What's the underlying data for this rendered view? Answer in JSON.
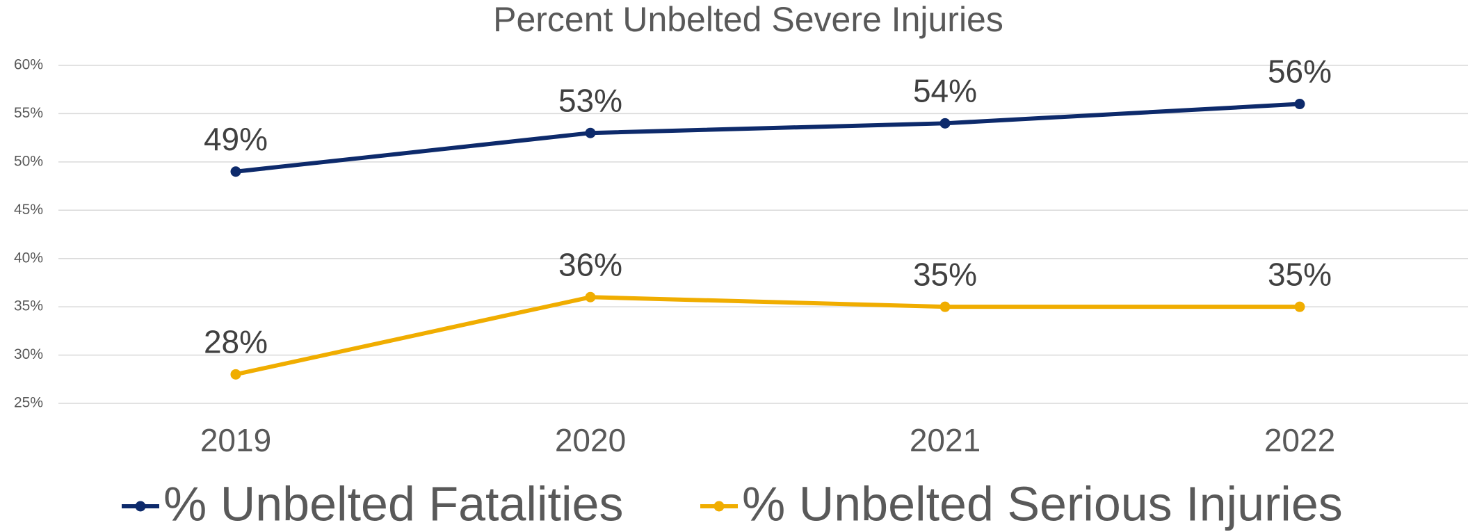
{
  "chart_data": {
    "type": "line",
    "title": "Percent Unbelted Severe Injuries",
    "categories": [
      "2019",
      "2020",
      "2021",
      "2022"
    ],
    "series": [
      {
        "name": "% Unbelted Fatalities",
        "color": "#0d2a6b",
        "values": [
          49,
          53,
          54,
          56
        ],
        "value_labels": [
          "49%",
          "53%",
          "54%",
          "56%"
        ]
      },
      {
        "name": "% Unbelted Serious Injuries",
        "color": "#f0ad00",
        "values": [
          28,
          36,
          35,
          35
        ],
        "value_labels": [
          "28%",
          "36%",
          "35%",
          "35%"
        ]
      }
    ],
    "ylim": [
      25,
      60
    ],
    "yticks": [
      {
        "value": 25,
        "label": "25%"
      },
      {
        "value": 30,
        "label": "30%"
      },
      {
        "value": 35,
        "label": "35%"
      },
      {
        "value": 40,
        "label": "40%"
      },
      {
        "value": 45,
        "label": "45%"
      },
      {
        "value": 50,
        "label": "50%"
      },
      {
        "value": 55,
        "label": "55%"
      },
      {
        "value": 60,
        "label": "60%"
      }
    ],
    "grid": true,
    "legend": "bottom"
  }
}
